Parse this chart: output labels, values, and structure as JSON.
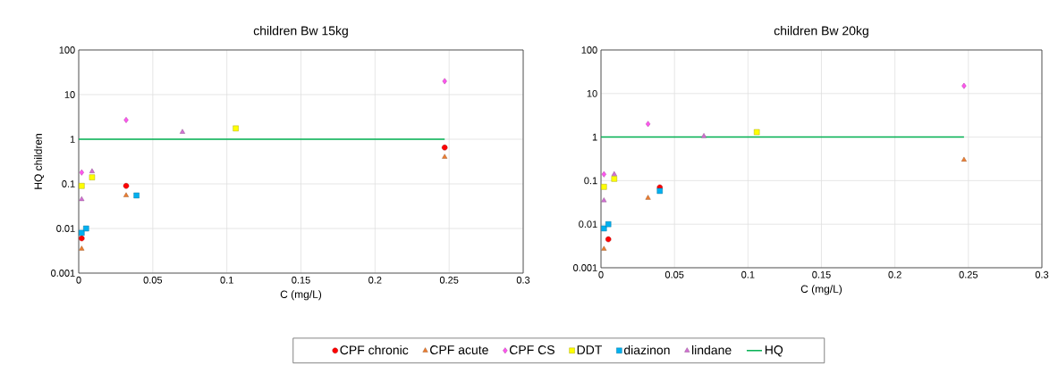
{
  "chart_data": [
    {
      "type": "scatter",
      "title": "children Bw 15kg",
      "xlabel": "C (mg/L)",
      "ylabel": "HQ children",
      "log": "y",
      "grid": true,
      "legend": "bottom",
      "xlim": [
        0,
        0.3
      ],
      "xticks": [
        0,
        0.05,
        0.1,
        0.15,
        0.2,
        0.25,
        0.3
      ],
      "ylim": [
        0.001,
        100
      ],
      "yticks": [
        0.001,
        0.01,
        0.1,
        1,
        10,
        100
      ],
      "series": [
        {
          "name": "CPF chronic",
          "color": "#ff0000",
          "marker": "circle",
          "x": [
            0.002,
            0.032,
            0.247
          ],
          "values": [
            0.006,
            0.09,
            0.65
          ]
        },
        {
          "name": "CPF acute",
          "color": "#ed7d31",
          "marker": "triangle",
          "x": [
            0.002,
            0.032,
            0.247
          ],
          "values": [
            0.0035,
            0.055,
            0.4
          ]
        },
        {
          "name": "CPF CS",
          "color": "#ff55ee",
          "marker": "diamond",
          "x": [
            0.002,
            0.032,
            0.247
          ],
          "values": [
            0.18,
            2.7,
            20
          ]
        },
        {
          "name": "DDT",
          "color": "#ffff00",
          "marker": "square",
          "x": [
            0.002,
            0.009,
            0.106
          ],
          "values": [
            0.09,
            0.14,
            1.75
          ]
        },
        {
          "name": "diazinon",
          "color": "#00b0f0",
          "marker": "square",
          "x": [
            0.002,
            0.005,
            0.039
          ],
          "values": [
            0.008,
            0.01,
            0.055
          ]
        },
        {
          "name": "lindane",
          "color": "#d36fd3",
          "marker": "triangle",
          "x": [
            0.002,
            0.009,
            0.07
          ],
          "values": [
            0.045,
            0.19,
            1.45
          ]
        },
        {
          "name": "HQ",
          "color": "#00b050",
          "type": "line",
          "marker": "none",
          "x": [
            0,
            0.247
          ],
          "values": [
            1,
            1
          ]
        }
      ]
    },
    {
      "type": "scatter",
      "title": "children Bw 20kg",
      "xlabel": "C (mg/L)",
      "log": "y",
      "grid": true,
      "xlim": [
        0,
        0.3
      ],
      "xticks": [
        0,
        0.05,
        0.1,
        0.15,
        0.2,
        0.25,
        0.3
      ],
      "ylim": [
        0.001,
        100
      ],
      "yticks": [
        0.001,
        0.01,
        0.1,
        1,
        10,
        100
      ],
      "series": [
        {
          "color": "#ff0000",
          "marker": "circle",
          "x": [
            0.005,
            0.04
          ],
          "values": [
            0.0045,
            0.07
          ]
        },
        {
          "color": "#ed7d31",
          "marker": "triangle",
          "x": [
            0.002,
            0.032,
            0.247
          ],
          "values": [
            0.0027,
            0.04,
            0.3
          ]
        },
        {
          "color": "#ff55ee",
          "marker": "diamond",
          "x": [
            0.002,
            0.032,
            0.247
          ],
          "values": [
            0.14,
            2.0,
            15
          ]
        },
        {
          "color": "#ffff00",
          "marker": "square",
          "x": [
            0.002,
            0.009,
            0.106
          ],
          "values": [
            0.072,
            0.11,
            1.3
          ]
        },
        {
          "color": "#00b0f0",
          "marker": "square",
          "x": [
            0.002,
            0.005,
            0.04
          ],
          "values": [
            0.008,
            0.01,
            0.058
          ]
        },
        {
          "color": "#d36fd3",
          "marker": "triangle",
          "x": [
            0.002,
            0.009,
            0.07
          ],
          "values": [
            0.035,
            0.14,
            1.05
          ]
        },
        {
          "color": "#00b050",
          "type": "line",
          "marker": "none",
          "x": [
            0,
            0.247
          ],
          "values": [
            1,
            1
          ]
        }
      ]
    }
  ]
}
